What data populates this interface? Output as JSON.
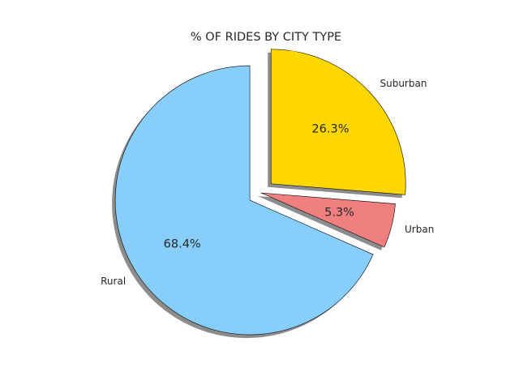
{
  "chart_data": {
    "type": "pie",
    "title": "% OF RIDES BY CITY TYPE",
    "categories": [
      "Rural",
      "Urban",
      "Suburban"
    ],
    "values": [
      68.4,
      5.3,
      26.3
    ],
    "percent_labels": [
      "68.4%",
      "5.3%",
      "26.3%"
    ],
    "colors": [
      "#87CEFA",
      "#F08080",
      "#FFD700"
    ],
    "exploded": [
      true,
      false,
      true
    ],
    "shadow": true,
    "legend": "none"
  }
}
